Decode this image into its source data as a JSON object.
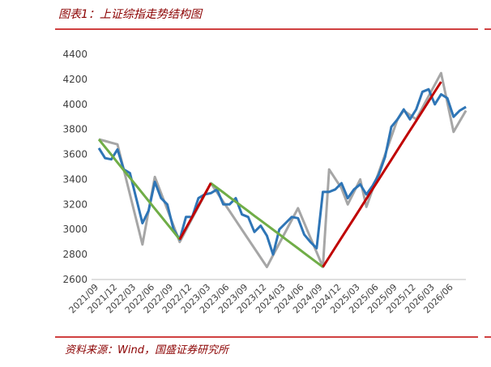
{
  "chart_data": {
    "type": "line",
    "title": "图表1：上证综指走势结构图",
    "source": "资料来源：Wind，国盛证券研究所",
    "categories": [
      "2021/09",
      null,
      null,
      "2021/12",
      null,
      null,
      "2022/03",
      null,
      null,
      "2022/06",
      null,
      null,
      "2022/09",
      null,
      null,
      "2022/12",
      null,
      null,
      "2023/03",
      null,
      null,
      "2023/06",
      null,
      null,
      "2023/09",
      null,
      null,
      "2023/12",
      null,
      null,
      "2024/03",
      null,
      null,
      "2024/06",
      null,
      null,
      "2024/09",
      null,
      null,
      "2024/12",
      null,
      null,
      "2025/03",
      null,
      null,
      "2025/06",
      null,
      null,
      "2025/09",
      null,
      null,
      "2025/12",
      null,
      null,
      "2026/03",
      null,
      null,
      "2026/06",
      null,
      null
    ],
    "ylim": [
      2600,
      4400
    ],
    "yticks": [
      2600,
      2800,
      3000,
      3200,
      3400,
      3600,
      3800,
      4000,
      4200,
      4400
    ],
    "grid": false,
    "series": [
      {
        "color": "#a6a6a6",
        "width": 3,
        "values": [
          3720,
          3707,
          3693,
          3680,
          3480,
          3280,
          3080,
          2880,
          3150,
          3420,
          3290,
          3160,
          3030,
          2900,
          2994,
          3088,
          3182,
          3276,
          3370,
          3296,
          3221,
          3147,
          3072,
          2998,
          2924,
          2849,
          2775,
          2700,
          2794,
          2888,
          2982,
          3076,
          3170,
          3053,
          2935,
          2818,
          2700,
          3480,
          3405,
          3330,
          3200,
          3300,
          3400,
          3180,
          3320,
          3460,
          3600,
          3740,
          3880,
          3950,
          3915,
          3880,
          3973,
          4065,
          4158,
          4250,
          4015,
          3780,
          3865,
          3950
        ]
      },
      {
        "color": "#2e75b6",
        "width": 3,
        "values": [
          3650,
          3570,
          3560,
          3640,
          3480,
          3450,
          3250,
          3050,
          3150,
          3380,
          3250,
          3200,
          3000,
          2920,
          3100,
          3100,
          3250,
          3280,
          3290,
          3320,
          3200,
          3200,
          3250,
          3120,
          3100,
          2980,
          3030,
          2950,
          2800,
          3000,
          3050,
          3100,
          3090,
          2960,
          2900,
          2850,
          3300,
          3300,
          3320,
          3370,
          3250,
          3320,
          3360,
          3280,
          3350,
          3440,
          3580,
          3820,
          3880,
          3960,
          3880,
          3960,
          4100,
          4120,
          4000,
          4080,
          4050,
          3900,
          3950,
          3980
        ]
      },
      {
        "color": "#70ad47",
        "width": 3,
        "values": [
          3720,
          3658,
          3597,
          3535,
          3474,
          3412,
          3351,
          3289,
          3228,
          3166,
          3105,
          3043,
          2982,
          2920,
          null,
          null,
          null,
          null,
          3370,
          3333,
          3296,
          3258,
          3221,
          3184,
          3147,
          3109,
          3072,
          3035,
          2998,
          2961,
          2923,
          2886,
          2849,
          2812,
          2774,
          2737,
          2700,
          null,
          null,
          null,
          null,
          null,
          null,
          null,
          null,
          null,
          null,
          null,
          null,
          null,
          null,
          null,
          null,
          null,
          null,
          null,
          null,
          null,
          null,
          null
        ]
      },
      {
        "color": "#c00000",
        "width": 3,
        "values": [
          null,
          null,
          null,
          null,
          null,
          null,
          null,
          null,
          null,
          null,
          null,
          null,
          null,
          2920,
          3010,
          3100,
          3190,
          3280,
          3370,
          null,
          null,
          null,
          null,
          null,
          null,
          null,
          null,
          null,
          null,
          null,
          null,
          null,
          null,
          null,
          null,
          null,
          2700,
          2778,
          2856,
          2934,
          3012,
          3089,
          3167,
          3245,
          3323,
          3401,
          3479,
          3557,
          3635,
          3713,
          3791,
          3868,
          3946,
          4024,
          4102,
          4180,
          null,
          null,
          null,
          null
        ]
      }
    ]
  }
}
